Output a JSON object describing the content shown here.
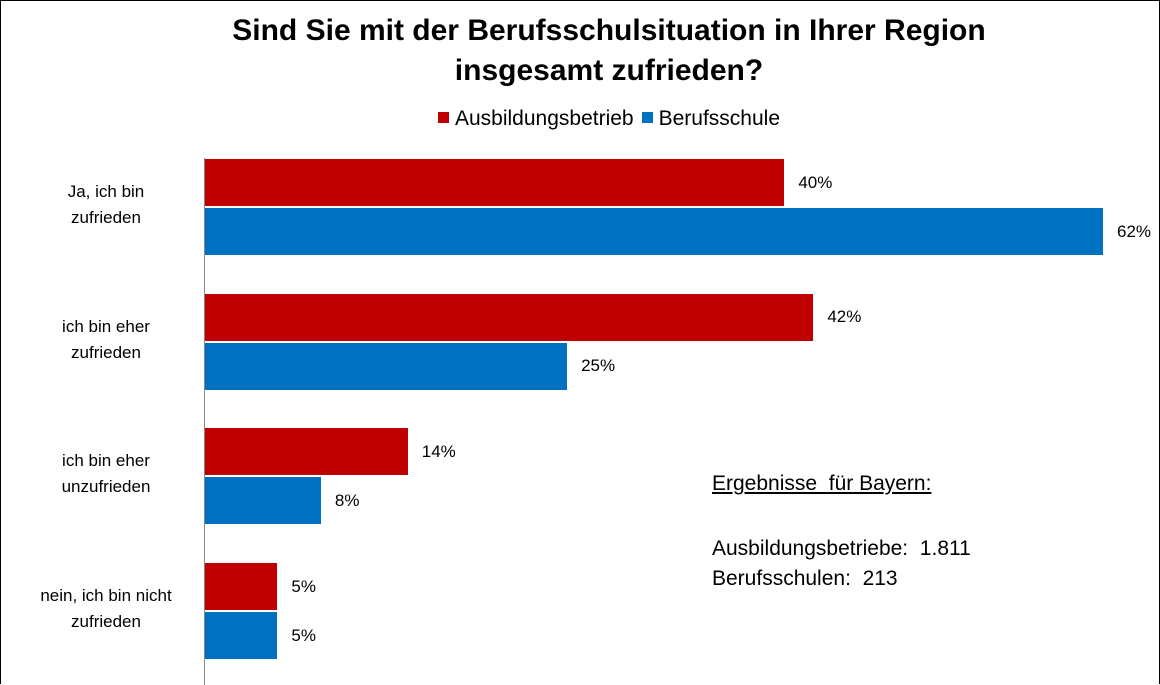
{
  "chart_data": {
    "type": "bar",
    "orientation": "horizontal",
    "title": "Sind Sie mit der Berufsschulsituation in Ihrer Region\ninsgesamt zufrieden?",
    "categories": [
      "Ja, ich bin\nzufrieden",
      "ich bin eher\nzufrieden",
      "ich bin eher\nunzufrieden",
      "nein, ich bin nicht\nzufrieden"
    ],
    "series": [
      {
        "name": "Ausbildungsbetrieb",
        "color": "#c00000",
        "values": [
          40,
          42,
          14,
          5
        ],
        "value_labels": [
          "40%",
          "42%",
          "14%",
          "5%"
        ]
      },
      {
        "name": "Berufsschule",
        "color": "#0070c0",
        "values": [
          62,
          25,
          8,
          5
        ],
        "value_labels": [
          "62%",
          "25%",
          "8%",
          "5%"
        ]
      }
    ],
    "legend": "top",
    "annotations": [
      "Ergebnisse  für Bayern:",
      "Ausbildungsbetriebe:  1.811",
      "Berufsschulen:  213"
    ]
  }
}
